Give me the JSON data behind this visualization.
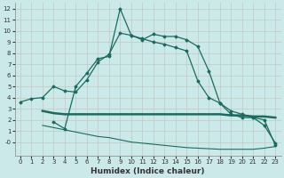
{
  "xlabel": "Humidex (Indice chaleur)",
  "bg_color": "#cbe9e9",
  "grid_color": "#b8d8d8",
  "line_color": "#1a6b5e",
  "xlim": [
    -0.5,
    23.5
  ],
  "ylim": [
    -1.2,
    12.5
  ],
  "yticks": [
    0,
    1,
    2,
    3,
    4,
    5,
    6,
    7,
    8,
    9,
    10,
    11,
    12
  ],
  "xticks": [
    0,
    1,
    2,
    3,
    4,
    5,
    6,
    7,
    8,
    9,
    10,
    11,
    12,
    13,
    14,
    15,
    16,
    17,
    18,
    19,
    20,
    21,
    22,
    23
  ],
  "series1_x": [
    0,
    1,
    2,
    3,
    4,
    5,
    6,
    7,
    8,
    9,
    10,
    11,
    12,
    13,
    14,
    15,
    16,
    17,
    18,
    19,
    20,
    21,
    22,
    23
  ],
  "series1_y": [
    3.6,
    3.9,
    4.0,
    5.0,
    4.6,
    4.5,
    5.6,
    7.2,
    7.9,
    9.8,
    9.6,
    9.2,
    9.7,
    9.5,
    9.5,
    9.2,
    8.6,
    6.4,
    3.5,
    2.5,
    2.2,
    2.2,
    1.5,
    -0.1
  ],
  "series2_x": [
    3,
    4,
    5,
    6,
    7,
    8,
    9,
    10,
    11,
    12,
    13,
    14,
    15,
    16,
    17,
    18,
    19,
    20,
    21,
    22,
    23
  ],
  "series2_y": [
    1.8,
    1.2,
    5.0,
    6.2,
    7.5,
    7.7,
    12.0,
    9.6,
    9.3,
    9.0,
    8.8,
    8.5,
    8.2,
    5.5,
    4.0,
    3.5,
    2.8,
    2.5,
    2.2,
    2.0,
    -0.3
  ],
  "series3_x": [
    2,
    3,
    4,
    5,
    6,
    7,
    8,
    9,
    10,
    11,
    12,
    13,
    14,
    15,
    16,
    17,
    18,
    19,
    20,
    21,
    22,
    23
  ],
  "series3_y": [
    2.8,
    2.6,
    2.5,
    2.5,
    2.5,
    2.5,
    2.5,
    2.5,
    2.5,
    2.5,
    2.5,
    2.5,
    2.5,
    2.5,
    2.5,
    2.5,
    2.5,
    2.4,
    2.4,
    2.3,
    2.3,
    2.2
  ],
  "series4_x": [
    2,
    3,
    4,
    5,
    6,
    7,
    8,
    9,
    10,
    11,
    12,
    13,
    14,
    15,
    16,
    17,
    18,
    19,
    20,
    21,
    22,
    23
  ],
  "series4_y": [
    1.5,
    1.3,
    1.1,
    0.9,
    0.7,
    0.5,
    0.4,
    0.2,
    0.0,
    -0.1,
    -0.2,
    -0.3,
    -0.4,
    -0.5,
    -0.55,
    -0.6,
    -0.65,
    -0.65,
    -0.65,
    -0.65,
    -0.55,
    -0.4
  ],
  "xlabel_fontsize": 6.5,
  "tick_fontsize": 5.0
}
